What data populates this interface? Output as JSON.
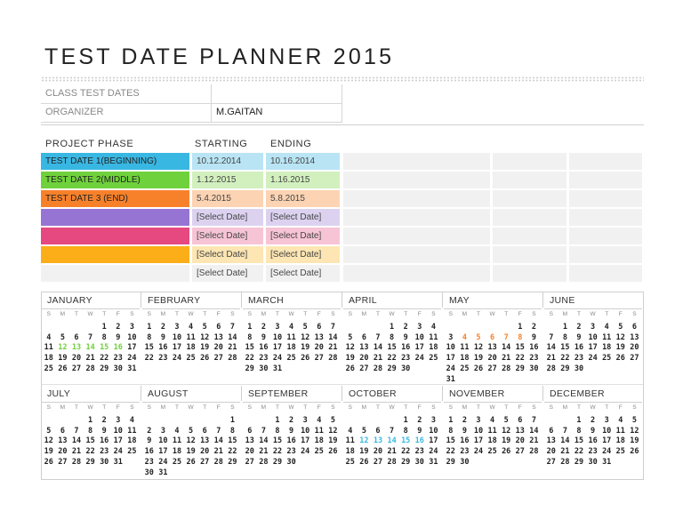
{
  "title": "TEST DATE PLANNER 2015",
  "info": [
    {
      "label": "CLASS TEST DATES",
      "value": ""
    },
    {
      "label": "ORGANIZER",
      "value": "M.GAITAN"
    }
  ],
  "phase_header": {
    "phase": "PROJECT PHASE",
    "start": "STARTING",
    "end": "ENDING"
  },
  "phases": [
    {
      "label": "TEST DATE 1(BEGINNING)",
      "start": "10.12.2014",
      "end": "10.16.2014",
      "color": "#39b7e3",
      "start_bg": "#b9e4f4",
      "end_bg": "#b9e4f4"
    },
    {
      "label": "TEST DATE 2(MIDDLE)",
      "start": "1.12.2015",
      "end": "1.16.2015",
      "color": "#6fd13b",
      "start_bg": "#d2f0be",
      "end_bg": "#d2f0be"
    },
    {
      "label": "TEST DATE 3 (END)",
      "start": "5.4.2015",
      "end": "5.8.2015",
      "color": "#f7812a",
      "start_bg": "#fcd3b3",
      "end_bg": "#fcd3b3"
    },
    {
      "label": "",
      "start": "[Select Date]",
      "end": "[Select Date]",
      "color": "#9674d3",
      "start_bg": "#dcd2f0",
      "end_bg": "#dcd2f0"
    },
    {
      "label": "",
      "start": "[Select Date]",
      "end": "[Select Date]",
      "color": "#e64880",
      "start_bg": "#f7c4d6",
      "end_bg": "#f7c4d6"
    },
    {
      "label": "",
      "start": "[Select Date]",
      "end": "[Select Date]",
      "color": "#fbae18",
      "start_bg": "#fde6b3",
      "end_bg": "#fde6b3"
    },
    {
      "label": "",
      "start": "[Select Date]",
      "end": "[Select Date]",
      "color": "#f1f1f1",
      "start_bg": "#f1f1f1",
      "end_bg": "#f1f1f1"
    }
  ],
  "weekdays": [
    "S",
    "M",
    "T",
    "W",
    "T",
    "F",
    "S"
  ],
  "months": [
    {
      "name": "JANUARY",
      "offset": 4,
      "days": 31,
      "hl": {
        "color": "#6fd13b",
        "days": [
          12,
          13,
          14,
          15,
          16
        ]
      }
    },
    {
      "name": "FEBRUARY",
      "offset": 0,
      "days": 28
    },
    {
      "name": "MARCH",
      "offset": 0,
      "days": 31
    },
    {
      "name": "APRIL",
      "offset": 3,
      "days": 30
    },
    {
      "name": "MAY",
      "offset": 5,
      "days": 31,
      "hl": {
        "color": "#f7812a",
        "days": [
          4,
          5,
          6,
          7,
          8
        ]
      }
    },
    {
      "name": "JUNE",
      "offset": 1,
      "days": 30
    },
    {
      "name": "JULY",
      "offset": 3,
      "days": 31
    },
    {
      "name": "AUGUST",
      "offset": 6,
      "days": 31
    },
    {
      "name": "SEPTEMBER",
      "offset": 2,
      "days": 30
    },
    {
      "name": "OCTOBER",
      "offset": 4,
      "days": 31,
      "hl": {
        "color": "#39b7e3",
        "days": [
          12,
          13,
          14,
          15,
          16
        ]
      }
    },
    {
      "name": "NOVEMBER",
      "offset": 0,
      "days": 30
    },
    {
      "name": "DECEMBER",
      "offset": 2,
      "days": 31
    }
  ]
}
